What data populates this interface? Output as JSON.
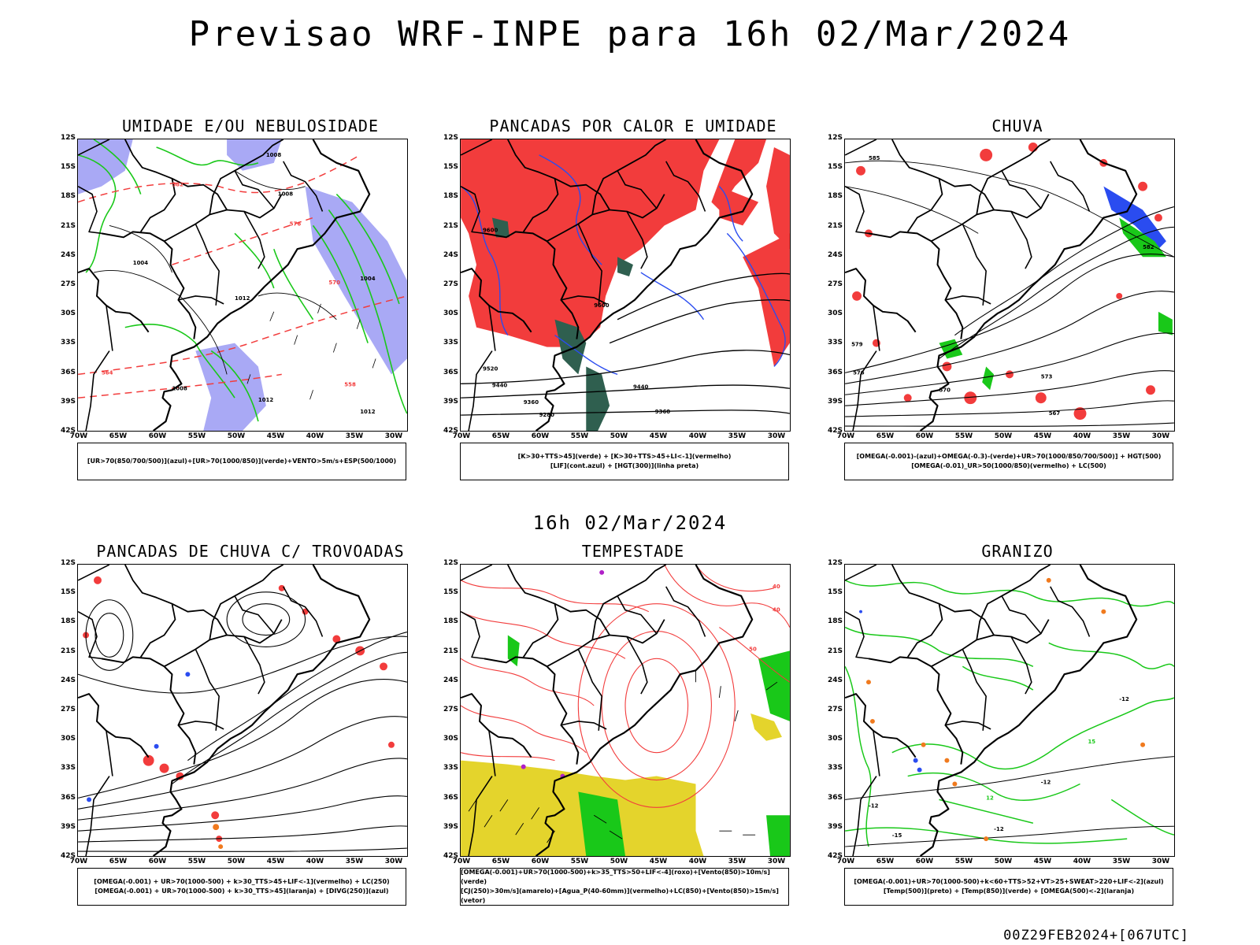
{
  "header": {
    "title": "Previsao WRF-INPE  para 16h 02/Mar/2024"
  },
  "middle_title": "16h 02/Mar/2024",
  "footer_stamp": "00Z29FEB2024+[067UTC]",
  "axes": {
    "lat_labels": [
      "12S",
      "15S",
      "18S",
      "21S",
      "24S",
      "27S",
      "30S",
      "33S",
      "36S",
      "39S",
      "42S"
    ],
    "lon_labels": [
      "70W",
      "65W",
      "60W",
      "55W",
      "50W",
      "45W",
      "40W",
      "35W",
      "30W"
    ]
  },
  "colors": {
    "blue_shade": "#a9a9f5",
    "green": "#19c819",
    "red": "#f23c3c",
    "dark_green": "#2f5f4f",
    "yellow": "#e4d42c",
    "orange": "#f07a1e",
    "purple": "#b020c8"
  },
  "panels": [
    {
      "id": "umidade",
      "title": "UMIDADE E/OU NEBULOSIDADE",
      "legend": [
        "[UR>70(850/700/500)](azul)+[UR>70(1000/850)](verde)+VENTO>5m/s+ESP(500/1000)"
      ],
      "contour_labels": [
        "1008",
        "1008",
        "1004",
        "1004",
        "1012",
        "1012",
        "1012",
        "1008",
        "576",
        "570",
        "582",
        "564",
        "558"
      ]
    },
    {
      "id": "pancadas-calor",
      "title": "PANCADAS POR CALOR E UMIDADE",
      "legend": [
        "[K>30+TTS>45](verde) + [K>30+TTS>45+LI<-1](vermelho)",
        "[LIF](cont.azul) + [HGT(300)](linha preta)"
      ],
      "contour_labels": [
        "9600",
        "9600",
        "9520",
        "9440",
        "9440",
        "9360",
        "9280",
        "9360"
      ]
    },
    {
      "id": "chuva",
      "title": "CHUVA",
      "legend": [
        "[OMEGA(-0.001)-(azul)+OMEGA(-0.3)-(verde)+UR>70(1000/850/700/500)] + HGT(500)",
        "[OMEGA(-0.01)_UR>50(1000/850)(vermelho) + LC(500)"
      ],
      "contour_labels": [
        "585",
        "582",
        "579",
        "576",
        "573",
        "570",
        "567"
      ]
    },
    {
      "id": "pancadas-trovoadas",
      "title": "PANCADAS DE CHUVA C/ TROVOADAS",
      "legend": [
        "[OMEGA(-0.001) + UR>70(1000-500) + k>30_TTS>45+LIF<-1](vermelho) + LC(250)",
        "[OMEGA(-0.001) + UR>70(1000-500) + k>30_TTS>45](laranja) + [DIVG(250)](azul)"
      ],
      "contour_labels": []
    },
    {
      "id": "tempestade",
      "title": "TEMPESTADE",
      "legend": [
        "[OMEGA(-0.001)+UR>70(1000-500)+k>35_TTS>50+LIF<-4](roxo)+[Vento(850)>10m/s](verde)",
        "[CJ(250)>30m/s](amarelo)+[Agua_P(40-60mm)](vermelho)+LC(850)+[Vento(850)>15m/s](vetor)"
      ],
      "contour_labels": [
        "40",
        "40",
        "50"
      ]
    },
    {
      "id": "granizo",
      "title": "GRANIZO",
      "legend": [
        "[OMEGA(-0.001)+UR>70(1000-500)+k<60+TTS>52+VT>25+SWEAT>220+LIF<-2](azul)",
        "[Temp(500)](preto) + [Temp(850)](verde) + [OMEGA(500)<-2](laranja)"
      ],
      "contour_labels": [
        "-12",
        "-12",
        "-15",
        "-12",
        "-12",
        "15",
        "12"
      ]
    }
  ]
}
